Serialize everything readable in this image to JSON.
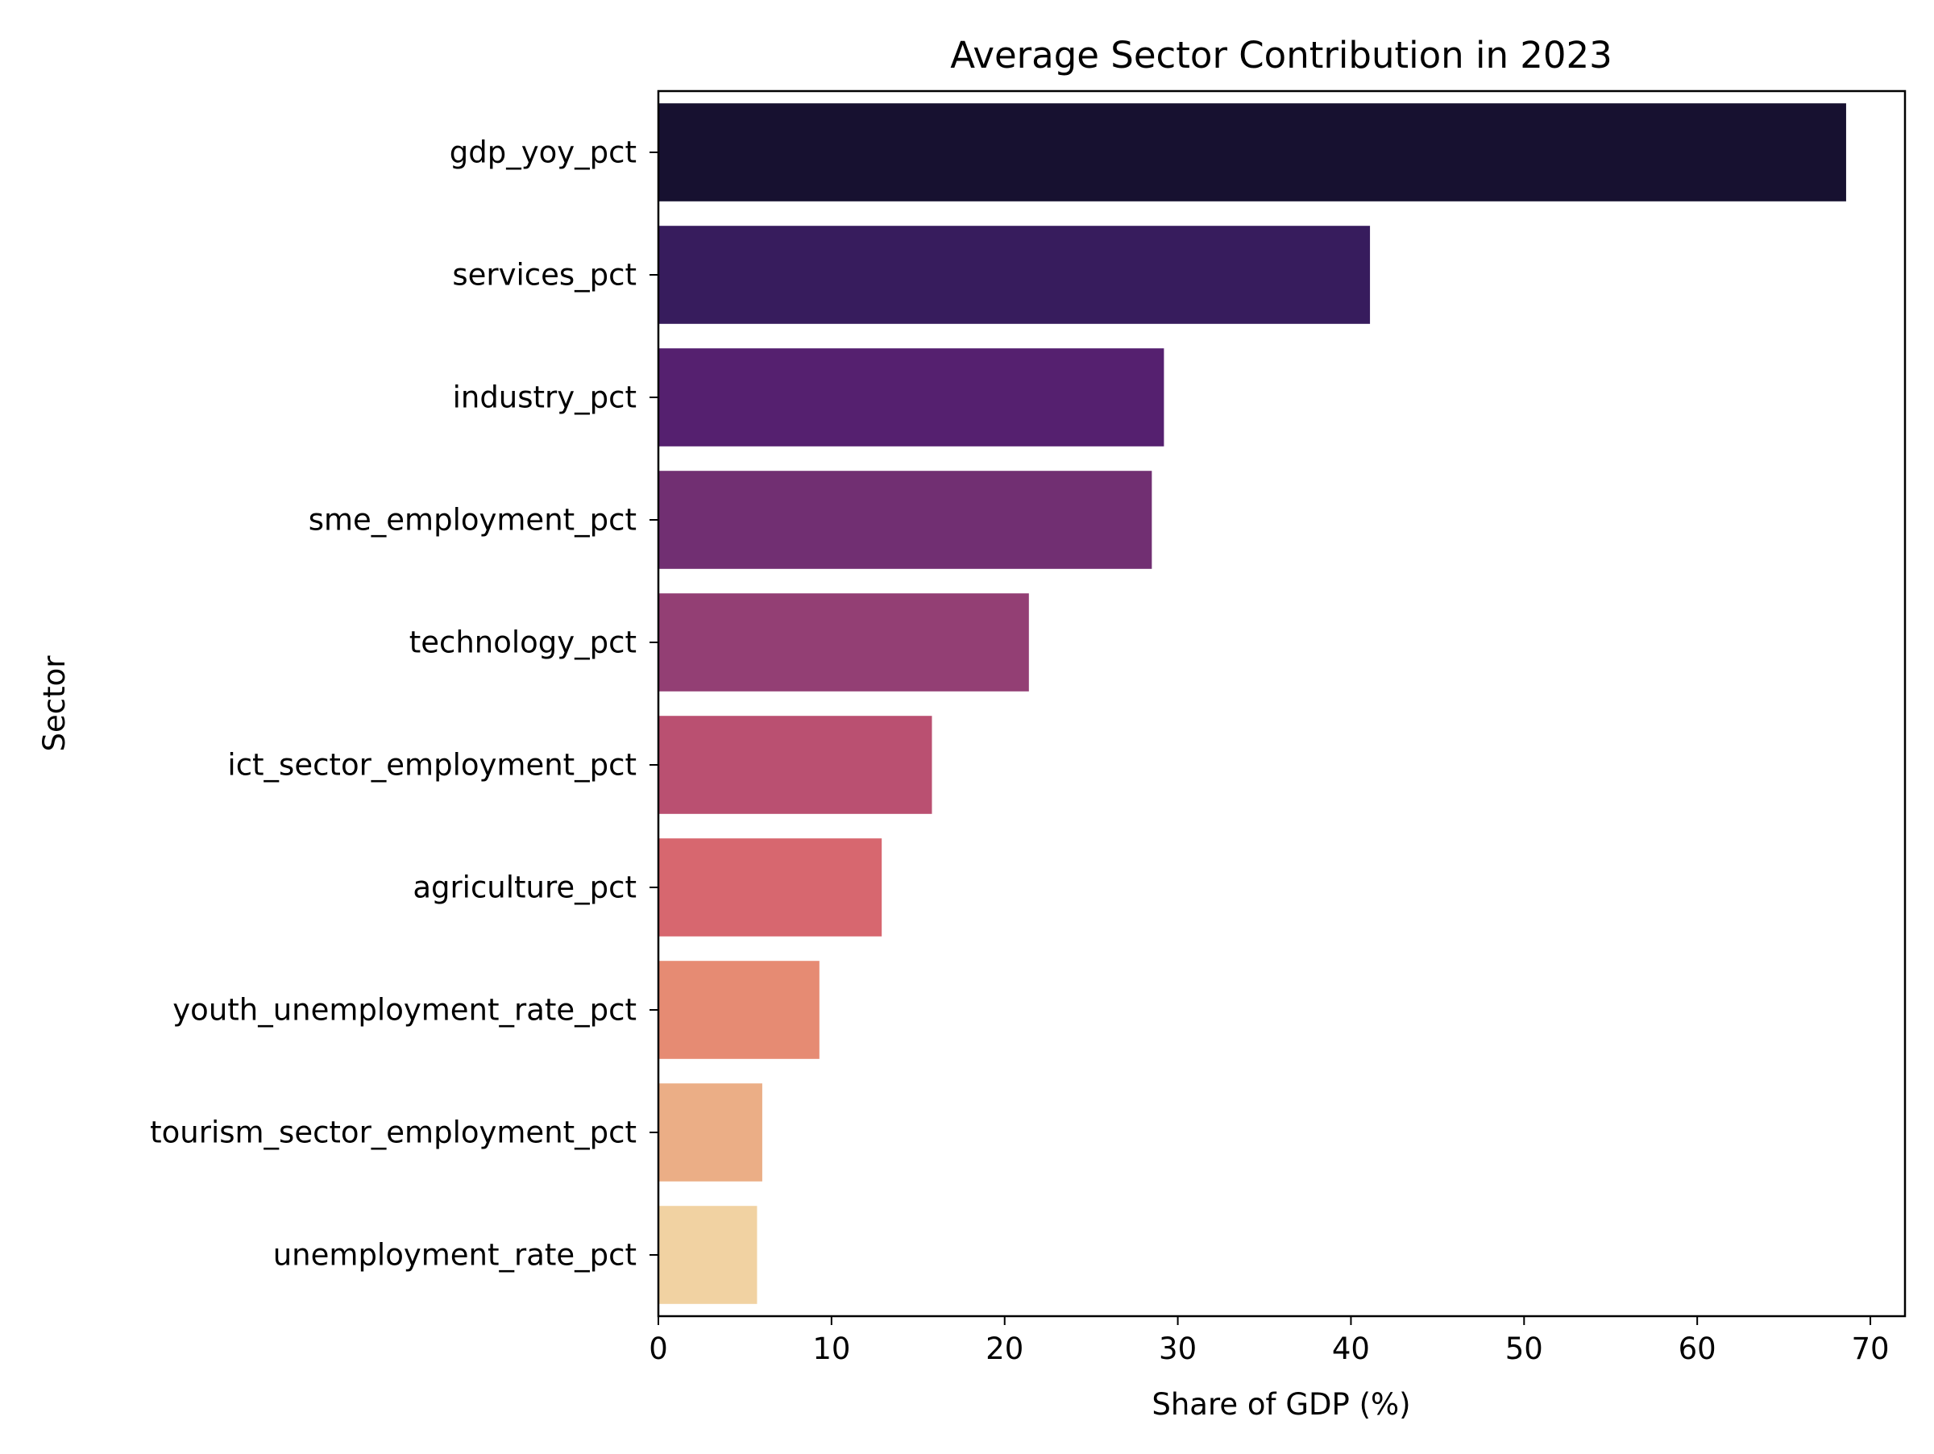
{
  "chart_data": {
    "type": "bar",
    "orientation": "horizontal",
    "title": "Average Sector Contribution in 2023",
    "xlabel": "Share of GDP (%)",
    "ylabel": "Sector",
    "xlim": [
      0,
      72
    ],
    "xticks": [
      0,
      10,
      20,
      30,
      40,
      50,
      60,
      70
    ],
    "grid": false,
    "categories": [
      "gdp_yoy_pct",
      "services_pct",
      "industry_pct",
      "sme_employment_pct",
      "technology_pct",
      "ict_sector_employment_pct",
      "agriculture_pct",
      "youth_unemployment_rate_pct",
      "tourism_sector_employment_pct",
      "unemployment_rate_pct"
    ],
    "values": [
      68.6,
      41.1,
      29.2,
      28.5,
      21.4,
      15.8,
      12.9,
      9.3,
      6.0,
      5.7
    ],
    "colors": [
      "#171130",
      "#371c5d",
      "#55206f",
      "#712f72",
      "#933f74",
      "#ba5071",
      "#d7676f",
      "#e68b73",
      "#ebae86",
      "#f1d2a2"
    ]
  }
}
